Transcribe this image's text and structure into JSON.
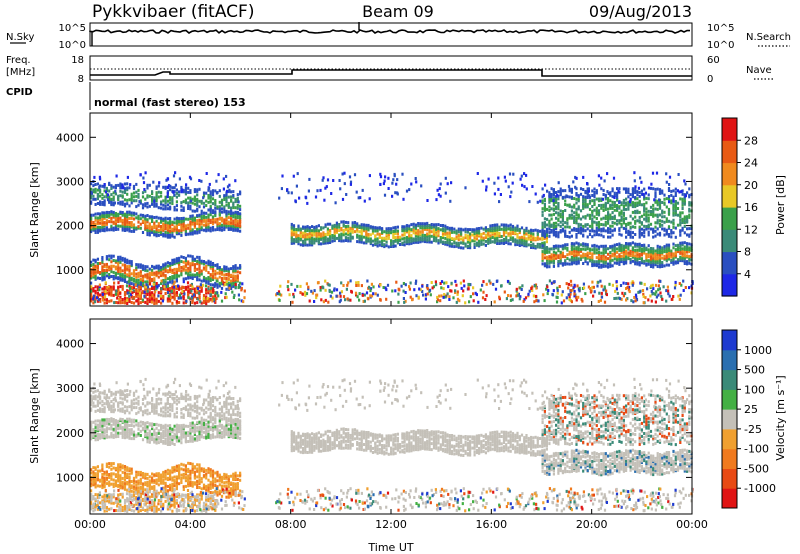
{
  "header": {
    "radar": "Pykkvibaer (fitACF)",
    "beam": "Beam 09",
    "date": "09/Aug/2013"
  },
  "noise_panel": {
    "left_label": "N.Sky",
    "right_label": "N.Search",
    "left_ticks": [
      "10^5",
      "10^0"
    ],
    "right_ticks": [
      "10^5",
      "10^0"
    ]
  },
  "freq_panel": {
    "left_label_1": "Freq.",
    "left_label_2": "[MHz]",
    "right_label": "Nave",
    "left_ticks": [
      "18",
      "8"
    ],
    "right_ticks": [
      "60",
      "0"
    ]
  },
  "cpid_panel": {
    "label": "CPID",
    "text": "normal (fast stereo) 153"
  },
  "colors": {
    "power_scale": [
      "#1e28e6",
      "#2a4fc0",
      "#3a8a78",
      "#3aa04a",
      "#e8c826",
      "#f08a1e",
      "#e85a14",
      "#e01414"
    ],
    "velocity_scale": [
      "#1e3ad0",
      "#2a6fb0",
      "#3a8a78",
      "#44b044",
      "#c4c0b8",
      "#f0a030",
      "#f07a1e",
      "#e84a14",
      "#e01414"
    ]
  },
  "chart_data": [
    {
      "type": "heatmap",
      "title": "Power",
      "quantity": "Power",
      "xlabel": "Time UT",
      "ylabel": "Slant Range [km]",
      "x_ticks": [
        "00:00",
        "04:00",
        "08:00",
        "12:00",
        "16:00",
        "20:00",
        "00:00"
      ],
      "y_ticks": [
        "1000",
        "2000",
        "3000",
        "4000"
      ],
      "x_range_hours": [
        0,
        24
      ],
      "y_range_km": [
        180,
        4550
      ],
      "colorbar_label": "Power [dB]",
      "colorbar_ticks": [
        "4",
        "8",
        "12",
        "16",
        "20",
        "24",
        "28"
      ],
      "colorbar_range": [
        0,
        32
      ]
    },
    {
      "type": "heatmap",
      "title": "Velocity",
      "quantity": "Velocity",
      "xlabel": "Time UT",
      "ylabel": "Slant Range [km]",
      "x_ticks": [
        "00:00",
        "04:00",
        "08:00",
        "12:00",
        "16:00",
        "20:00",
        "00:00"
      ],
      "y_ticks": [
        "1000",
        "2000",
        "3000",
        "4000"
      ],
      "x_range_hours": [
        0,
        24
      ],
      "y_range_km": [
        180,
        4550
      ],
      "colorbar_label": "Velocity [m s⁻¹]",
      "colorbar_ticks": [
        "1000",
        "500",
        "100",
        "25",
        "-25",
        "-100",
        "-500",
        "-1000"
      ]
    }
  ]
}
